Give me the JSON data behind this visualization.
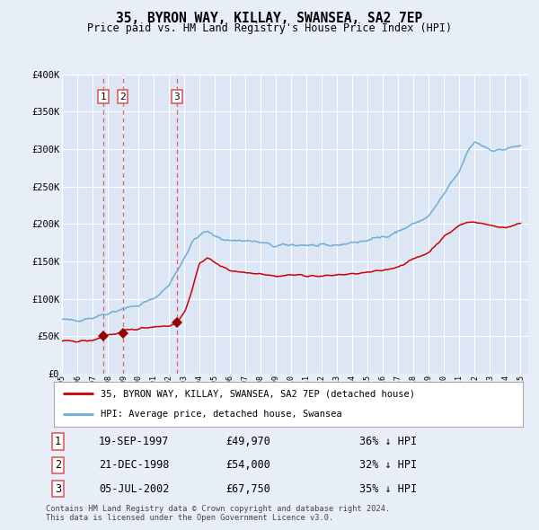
{
  "title": "35, BYRON WAY, KILLAY, SWANSEA, SA2 7EP",
  "subtitle": "Price paid vs. HM Land Registry's House Price Index (HPI)",
  "background_color": "#e8eef8",
  "plot_bg_color": "#dce6f5",
  "grid_color": "#ffffff",
  "ylabel_ticks": [
    "£0",
    "£50K",
    "£100K",
    "£150K",
    "£200K",
    "£250K",
    "£300K",
    "£350K",
    "£400K"
  ],
  "ytick_values": [
    0,
    50000,
    100000,
    150000,
    200000,
    250000,
    300000,
    350000,
    400000
  ],
  "xmin": 1995.0,
  "xmax": 2025.5,
  "ymin": 0,
  "ymax": 400000,
  "transactions": [
    {
      "num": 1,
      "date_str": "19-SEP-1997",
      "date_x": 1997.72,
      "price": 49970,
      "pct": "36%",
      "direction": "↓"
    },
    {
      "num": 2,
      "date_str": "21-DEC-1998",
      "date_x": 1998.97,
      "price": 54000,
      "pct": "32%",
      "direction": "↓"
    },
    {
      "num": 3,
      "date_str": "05-JUL-2002",
      "date_x": 2002.51,
      "price": 67750,
      "pct": "35%",
      "direction": "↓"
    }
  ],
  "legend_line1": "35, BYRON WAY, KILLAY, SWANSEA, SA2 7EP (detached house)",
  "legend_line2": "HPI: Average price, detached house, Swansea",
  "footer_line1": "Contains HM Land Registry data © Crown copyright and database right 2024.",
  "footer_line2": "This data is licensed under the Open Government Licence v3.0.",
  "hpi_color": "#6baed6",
  "price_color": "#cc0000",
  "vline_color": "#e05050",
  "marker_color": "#990000",
  "hpi_waypoints_x": [
    1995,
    1995.5,
    1996,
    1997,
    1998,
    1999,
    2000,
    2001,
    2002,
    2003,
    2003.5,
    2004,
    2004.5,
    2005,
    2006,
    2007,
    2008,
    2009,
    2010,
    2011,
    2012,
    2013,
    2014,
    2015,
    2016,
    2017,
    2018,
    2019,
    2019.5,
    2020,
    2021,
    2021.5,
    2022,
    2022.5,
    2023,
    2023.5,
    2024,
    2024.5,
    2025
  ],
  "hpi_waypoints_y": [
    72000,
    71000,
    72000,
    75000,
    81000,
    87000,
    91000,
    100000,
    118000,
    155000,
    175000,
    185000,
    190000,
    183000,
    178000,
    178000,
    175000,
    170000,
    172000,
    172000,
    170000,
    172000,
    175000,
    178000,
    183000,
    190000,
    200000,
    210000,
    225000,
    240000,
    270000,
    295000,
    310000,
    305000,
    300000,
    298000,
    300000,
    302000,
    305000
  ],
  "price_waypoints_x": [
    1995,
    1996,
    1997,
    1997.72,
    1998,
    1998.97,
    1999,
    2000,
    2001,
    2002,
    2002.51,
    2003,
    2003.5,
    2004,
    2004.5,
    2005,
    2006,
    2007,
    2008,
    2009,
    2010,
    2011,
    2012,
    2013,
    2014,
    2015,
    2016,
    2017,
    2018,
    2019,
    2019.5,
    2020,
    2021,
    2021.5,
    2022,
    2023,
    2024,
    2024.5,
    2025
  ],
  "price_waypoints_y": [
    43000,
    43500,
    44000,
    49970,
    52000,
    54000,
    57000,
    60000,
    63000,
    64000,
    67750,
    82000,
    110000,
    148000,
    155000,
    148000,
    138000,
    135000,
    134000,
    130000,
    132000,
    131000,
    130000,
    132000,
    133000,
    135000,
    138000,
    143000,
    153000,
    162000,
    173000,
    183000,
    198000,
    202000,
    203000,
    198000,
    195000,
    198000,
    200000
  ]
}
